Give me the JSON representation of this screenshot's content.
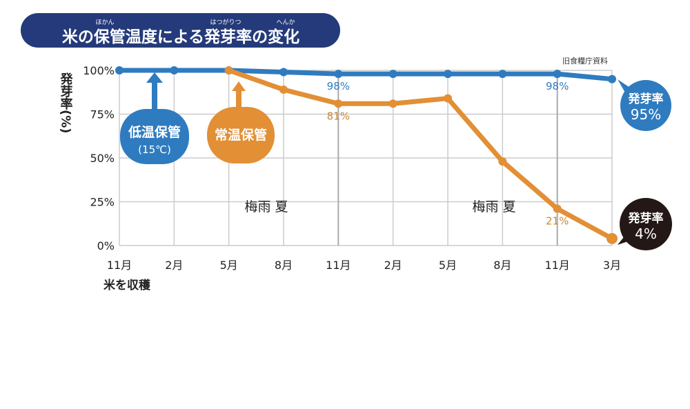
{
  "chart_data": {
    "type": "line",
    "title": "米の保管温度による発芽率の変化",
    "title_ruby": [
      "ほかん",
      "はつがりつ",
      "へんか"
    ],
    "source": "旧食糧庁資料",
    "ylabel": "発芽率(%)",
    "ylim": [
      0,
      100
    ],
    "yticks": [
      "0%",
      "25%",
      "50%",
      "75%",
      "100%"
    ],
    "categories": [
      "11月",
      "2月",
      "5月",
      "8月",
      "11月",
      "2月",
      "5月",
      "8月",
      "11月",
      "3月"
    ],
    "x_note": "米を収穫",
    "series": [
      {
        "name": "低温保管(15℃)",
        "label": "低温保管",
        "sub": "(15℃)",
        "color": "#2f7bc0",
        "values": [
          100,
          100,
          100,
          99,
          98,
          98,
          98,
          98,
          98,
          95
        ]
      },
      {
        "name": "常温保管",
        "label": "常温保管",
        "sub": "",
        "color": "#e28f35",
        "values": [
          null,
          null,
          100,
          89,
          81,
          81,
          84,
          48,
          21,
          4
        ]
      }
    ],
    "annotations": [
      {
        "text": "98%",
        "series": 0,
        "index": 4
      },
      {
        "text": "98%",
        "series": 0,
        "index": 8
      },
      {
        "text": "81%",
        "series": 1,
        "index": 4
      },
      {
        "text": "21%",
        "series": 1,
        "index": 8
      }
    ],
    "end_labels": [
      {
        "title": "発芽率",
        "value": "95%",
        "color": "#2f7bc0"
      },
      {
        "title": "発芽率",
        "value": "4%",
        "color": "#231815"
      }
    ],
    "season_labels": [
      "梅雨 夏",
      "梅雨 夏"
    ],
    "grid": true
  }
}
